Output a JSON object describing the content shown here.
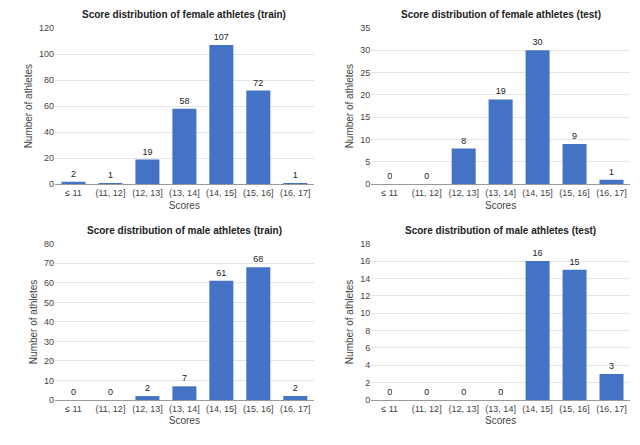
{
  "chart_data": [
    {
      "type": "bar",
      "title": "Score distribution of female athletes (train)",
      "xlabel": "Scores",
      "ylabel": "Number of athletes",
      "categories": [
        "≤ 11",
        "(11, 12]",
        "(12, 13]",
        "(13, 14]",
        "(14, 15]",
        "(15, 16]",
        "(16, 17]"
      ],
      "values": [
        2,
        1,
        19,
        58,
        107,
        72,
        1
      ],
      "color": "#4472c4",
      "ylim": [
        0,
        120
      ],
      "yticks": [
        0,
        20,
        40,
        60,
        80,
        100,
        120
      ],
      "grid": true,
      "data_labels": true
    },
    {
      "type": "bar",
      "title": "Score distribution of female athletes (test)",
      "xlabel": "Scores",
      "ylabel": "Number of athletes",
      "categories": [
        "≤ 11",
        "(11, 12]",
        "(12, 13]",
        "(13, 14]",
        "(14, 15]",
        "(15, 16]",
        "(16, 17]"
      ],
      "values": [
        0,
        0,
        8,
        19,
        30,
        9,
        1
      ],
      "color": "#4472c4",
      "ylim": [
        0,
        35
      ],
      "yticks": [
        0,
        5,
        10,
        15,
        20,
        25,
        30,
        35
      ],
      "grid": true,
      "data_labels": true
    },
    {
      "type": "bar",
      "title": "Score distribution of male athletes (train)",
      "xlabel": "Scores",
      "ylabel": "Number of athletes",
      "categories": [
        "≤ 11",
        "(11, 12]",
        "(12, 13]",
        "(13, 14]",
        "(14, 15]",
        "(15, 16]",
        "(16, 17]"
      ],
      "values": [
        0,
        0,
        2,
        7,
        61,
        68,
        2
      ],
      "color": "#4472c4",
      "ylim": [
        0,
        80
      ],
      "yticks": [
        0,
        10,
        20,
        30,
        40,
        50,
        60,
        70,
        80
      ],
      "grid": true,
      "data_labels": true
    },
    {
      "type": "bar",
      "title": "Score distribution of male athletes (test)",
      "xlabel": "Scores",
      "ylabel": "Number of athletes",
      "categories": [
        "≤ 11",
        "(11, 12]",
        "(12, 13]",
        "(13, 14]",
        "(14, 15]",
        "(15, 16]",
        "(16, 17]"
      ],
      "values": [
        0,
        0,
        0,
        0,
        16,
        15,
        3
      ],
      "color": "#4472c4",
      "ylim": [
        0,
        18
      ],
      "yticks": [
        0,
        2,
        4,
        6,
        8,
        10,
        12,
        14,
        16,
        18
      ],
      "grid": true,
      "data_labels": true
    }
  ]
}
